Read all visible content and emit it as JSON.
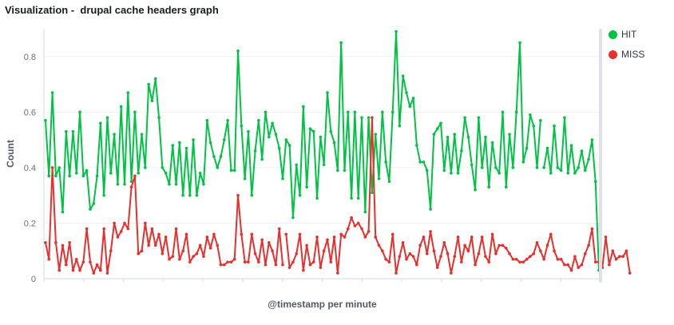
{
  "window": {
    "title": "Visualization -  drupal cache headers graph"
  },
  "legend": {
    "items": [
      {
        "label": "HIT",
        "color": "#00c345"
      },
      {
        "label": "MISS",
        "color": "#e7302e"
      }
    ],
    "position": "right"
  },
  "chart_data": {
    "type": "line",
    "title": "",
    "xlabel": "@timestamp per minute",
    "ylabel": "Count",
    "ylim": [
      0,
      0.9
    ],
    "yticks": [
      "0",
      "0.2",
      "0.4",
      "0.6",
      "0.8"
    ],
    "ytick_values": [
      0,
      0.2,
      0.4,
      0.6,
      0.8
    ],
    "grid": "horizontal",
    "series": [
      {
        "name": "HIT",
        "color": "#00c345",
        "values": [
          0.57,
          0.37,
          0.67,
          0.37,
          0.4,
          0.24,
          0.53,
          0.37,
          0.53,
          0.38,
          0.6,
          0.37,
          0.39,
          0.25,
          0.27,
          0.37,
          0.56,
          0.3,
          0.58,
          0.38,
          0.52,
          0.34,
          0.62,
          0.34,
          0.67,
          0.35,
          0.6,
          0.38,
          0.52,
          0.4,
          0.7,
          0.64,
          0.72,
          0.58,
          0.4,
          0.38,
          0.34,
          0.48,
          0.34,
          0.49,
          0.3,
          0.47,
          0.3,
          0.5,
          0.3,
          0.38,
          0.34,
          0.57,
          0.49,
          0.44,
          0.4,
          0.44,
          0.5,
          0.57,
          0.39,
          0.39,
          0.82,
          0.55,
          0.36,
          0.53,
          0.3,
          0.46,
          0.57,
          0.43,
          0.6,
          0.51,
          0.56,
          0.52,
          0.47,
          0.36,
          0.5,
          0.48,
          0.22,
          0.41,
          0.3,
          0.62,
          0.33,
          0.54,
          0.53,
          0.29,
          0.51,
          0.41,
          0.67,
          0.53,
          0.49,
          0.39,
          0.85,
          0.39,
          0.6,
          0.29,
          0.6,
          0.29,
          0.58,
          0.24,
          0.58,
          0.31,
          0.52,
          0.36,
          0.6,
          0.42,
          0.35,
          0.6,
          0.89,
          0.55,
          0.73,
          0.67,
          0.62,
          0.65,
          0.48,
          0.42,
          0.42,
          0.39,
          0.25,
          0.52,
          0.54,
          0.56,
          0.39,
          0.51,
          0.38,
          0.52,
          0.38,
          0.46,
          0.58,
          0.51,
          0.41,
          0.32,
          0.58,
          0.4,
          0.51,
          0.33,
          0.49,
          0.4,
          0.38,
          0.6,
          0.33,
          0.52,
          0.4,
          0.6,
          0.85,
          0.42,
          0.47,
          0.59,
          0.55,
          0.4,
          0.57,
          0.4,
          0.47,
          0.38,
          0.55,
          0.4,
          0.39,
          0.58,
          0.38,
          0.48,
          0.38,
          0.4,
          0.46,
          0.39,
          0.43,
          0.5,
          0.35,
          0.03
        ],
        "break_after": [
          144
        ]
      },
      {
        "name": "MISS",
        "color": "#e7302e",
        "values": [
          0.13,
          0.07,
          0.4,
          0.13,
          0.03,
          0.12,
          0.05,
          0.13,
          0.03,
          0.07,
          0.03,
          0.06,
          0.18,
          0.06,
          0.02,
          0.05,
          0.03,
          0.18,
          0.02,
          0.1,
          0.2,
          0.15,
          0.17,
          0.2,
          0.18,
          0.33,
          0.37,
          0.09,
          0.1,
          0.2,
          0.12,
          0.18,
          0.12,
          0.16,
          0.09,
          0.15,
          0.07,
          0.08,
          0.18,
          0.07,
          0.1,
          0.16,
          0.06,
          0.08,
          0.09,
          0.12,
          0.08,
          0.15,
          0.11,
          0.16,
          0.12,
          0.05,
          0.05,
          0.06,
          0.06,
          0.07,
          0.3,
          0.16,
          0.06,
          0.06,
          0.16,
          0.09,
          0.06,
          0.14,
          0.05,
          0.13,
          0.1,
          0.05,
          0.18,
          0.05,
          0.16,
          0.04,
          0.06,
          0.09,
          0.16,
          0.03,
          0.12,
          0.05,
          0.06,
          0.15,
          0.04,
          0.1,
          0.14,
          0.06,
          0.15,
          0.02,
          0.16,
          0.15,
          0.18,
          0.22,
          0.19,
          0.2,
          0.18,
          0.15,
          0.17,
          0.58,
          0.15,
          0.12,
          0.1,
          0.07,
          0.06,
          0.16,
          0.02,
          0.08,
          0.13,
          0.07,
          0.09,
          0.08,
          0.05,
          0.12,
          0.15,
          0.09,
          0.17,
          0.1,
          0.04,
          0.08,
          0.13,
          0.09,
          0.02,
          0.08,
          0.15,
          0.06,
          0.12,
          0.1,
          0.15,
          0.05,
          0.09,
          0.15,
          0.08,
          0.06,
          0.16,
          0.09,
          0.12,
          0.12,
          0.11,
          0.09,
          0.07,
          0.07,
          0.06,
          0.06,
          0.07,
          0.08,
          0.09,
          0.13,
          0.1,
          0.07,
          0.12,
          0.16,
          0.1,
          0.07,
          0.07,
          0.05,
          0.05,
          0.03,
          0.08,
          0.04,
          0.05,
          0.09,
          0.12,
          0.18,
          0.06,
          0.06,
          0.04,
          0.15,
          0.05,
          0.1,
          0.07,
          0.08,
          0.08,
          0.1,
          0.02
        ],
        "break_after": [
          69
        ]
      }
    ]
  }
}
